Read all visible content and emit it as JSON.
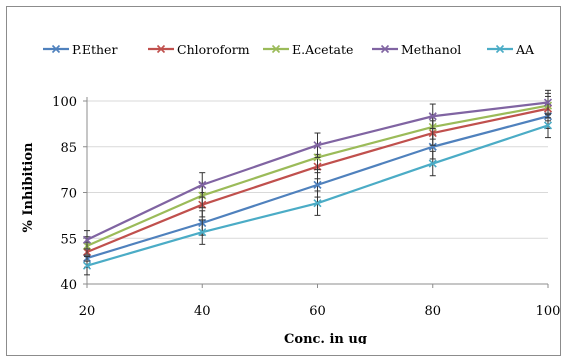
{
  "chart_data": {
    "type": "line",
    "title": "",
    "xlabel": "Conc. in ug",
    "ylabel": "% Inhibition",
    "x": [
      20,
      40,
      60,
      80,
      100
    ],
    "xlim": [
      20,
      100
    ],
    "ylim": [
      40,
      100
    ],
    "y_ticks": [
      40,
      55,
      70,
      85,
      100
    ],
    "x_ticks": [
      20,
      40,
      60,
      80,
      100
    ],
    "grid": "horizontal",
    "legend_position": "top",
    "error_bars": true,
    "series": [
      {
        "name": "P.Ether",
        "color": "#4f81bd",
        "marker": "x",
        "values": [
          48.5,
          60,
          72.5,
          85,
          95
        ],
        "errors": [
          3,
          4,
          4,
          4,
          4
        ]
      },
      {
        "name": "Chloroform",
        "color": "#c0504d",
        "marker": "x",
        "values": [
          50.5,
          66,
          78.5,
          89.5,
          97.5
        ],
        "errors": [
          3,
          4,
          4,
          4,
          4
        ]
      },
      {
        "name": "E.Acetate",
        "color": "#9bbb59",
        "marker": "x",
        "values": [
          52.5,
          69,
          81.5,
          91.5,
          98.5
        ],
        "errors": [
          3,
          4,
          4,
          4,
          4
        ]
      },
      {
        "name": "Methanol",
        "color": "#8064a2",
        "marker": "x",
        "values": [
          54.5,
          72.5,
          85.5,
          95,
          99.5
        ],
        "errors": [
          3,
          4,
          4,
          4,
          4
        ]
      },
      {
        "name": "AA",
        "color": "#4bacc6",
        "marker": "x",
        "values": [
          46,
          57,
          66.5,
          79.5,
          92
        ],
        "errors": [
          3,
          4,
          4,
          4,
          4
        ]
      }
    ]
  }
}
